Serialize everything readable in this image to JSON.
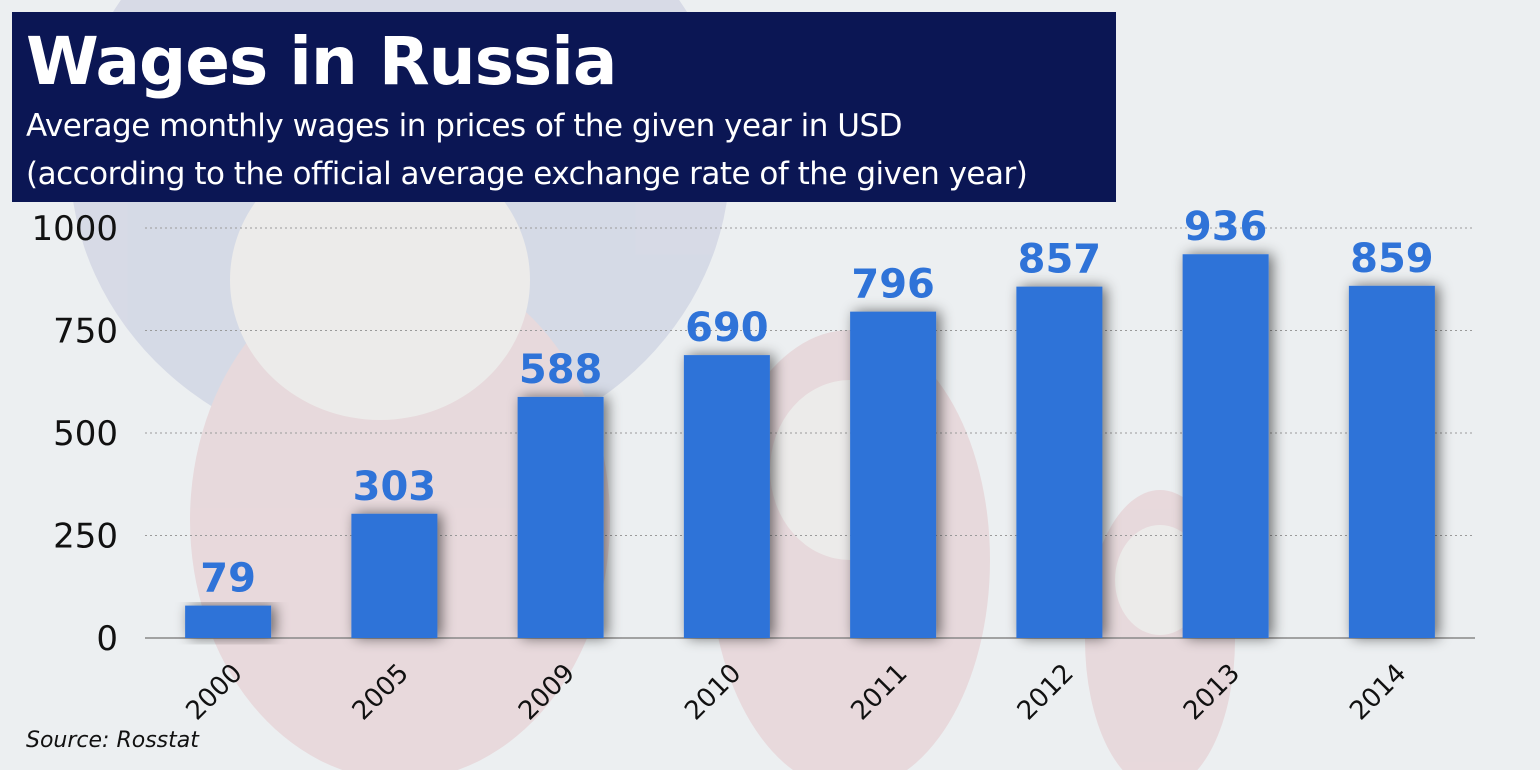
{
  "header": {
    "title": "Wages in Russia",
    "subtitle_line1": "Average monthly wages in prices of the given year in USD",
    "subtitle_line2": "(according to the official average exchange rate of the given year)"
  },
  "source": "Source: Rosstat",
  "colors": {
    "bar": "#2f73d8",
    "value_label": "#2f73d8",
    "title_bg": "#0b1654",
    "grid": "#9a9a9a"
  },
  "chart_data": {
    "type": "bar",
    "categories": [
      "2000",
      "2005",
      "2009",
      "2010",
      "2011",
      "2012",
      "2013",
      "2014"
    ],
    "values": [
      79,
      303,
      588,
      690,
      796,
      857,
      936,
      859
    ],
    "ylim": [
      0,
      1000
    ],
    "yticks": [
      "0",
      "250",
      "500",
      "750",
      "1000"
    ],
    "grid": true,
    "data_labels": true,
    "xlabel": "",
    "ylabel": ""
  }
}
